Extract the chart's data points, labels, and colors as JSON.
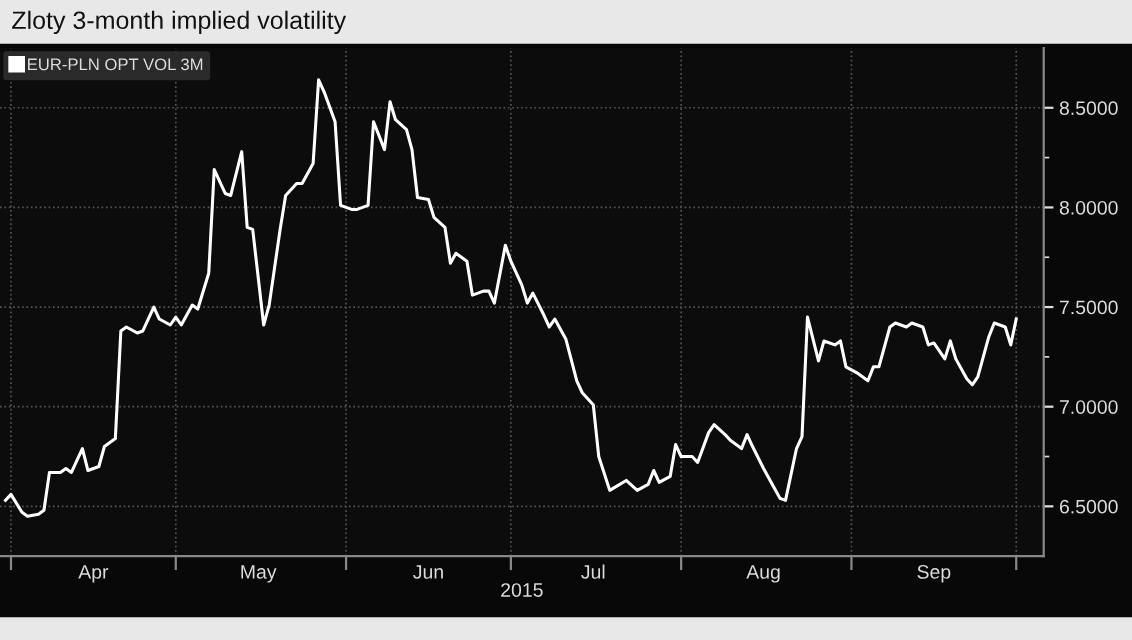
{
  "chart_data": {
    "type": "line",
    "title": "Zloty 3-month implied volatility",
    "xlabel": "2015",
    "x": [
      "2015-03-31",
      "2015-04-01",
      "2015-04-03",
      "2015-04-04",
      "2015-04-06",
      "2015-04-07",
      "2015-04-08",
      "2015-04-10",
      "2015-04-11",
      "2015-04-12",
      "2015-04-14",
      "2015-04-15",
      "2015-04-17",
      "2015-04-18",
      "2015-04-20",
      "2015-04-21",
      "2015-04-22",
      "2015-04-24",
      "2015-04-25",
      "2015-04-27",
      "2015-04-28",
      "2015-04-30",
      "2015-05-01",
      "2015-05-02",
      "2015-05-04",
      "2015-05-05",
      "2015-05-07",
      "2015-05-08",
      "2015-05-10",
      "2015-05-11",
      "2015-05-13",
      "2015-05-14",
      "2015-05-15",
      "2015-05-17",
      "2015-05-18",
      "2015-05-20",
      "2015-05-21",
      "2015-05-23",
      "2015-05-24",
      "2015-05-26",
      "2015-05-27",
      "2015-05-28",
      "2015-05-30",
      "2015-05-31",
      "2015-06-02",
      "2015-06-03",
      "2015-06-05",
      "2015-06-06",
      "2015-06-08",
      "2015-06-09",
      "2015-06-10",
      "2015-06-12",
      "2015-06-13",
      "2015-06-14",
      "2015-06-16",
      "2015-06-17",
      "2015-06-19",
      "2015-06-20",
      "2015-06-21",
      "2015-06-23",
      "2015-06-24",
      "2015-06-26",
      "2015-06-27",
      "2015-06-28",
      "2015-06-30",
      "2015-07-01",
      "2015-07-03",
      "2015-07-04",
      "2015-07-05",
      "2015-07-07",
      "2015-07-08",
      "2015-07-09",
      "2015-07-11",
      "2015-07-13",
      "2015-07-14",
      "2015-07-16",
      "2015-07-17",
      "2015-07-19",
      "2015-07-22",
      "2015-07-24",
      "2015-07-26",
      "2015-07-27",
      "2015-07-28",
      "2015-07-30",
      "2015-07-31",
      "2015-08-01",
      "2015-08-03",
      "2015-08-04",
      "2015-08-06",
      "2015-08-07",
      "2015-08-09",
      "2015-08-10",
      "2015-08-12",
      "2015-08-13",
      "2015-08-14",
      "2015-08-16",
      "2015-08-18",
      "2015-08-19",
      "2015-08-20",
      "2015-08-22",
      "2015-08-23",
      "2015-08-24",
      "2015-08-26",
      "2015-08-27",
      "2015-08-29",
      "2015-08-30",
      "2015-08-31",
      "2015-09-02",
      "2015-09-04",
      "2015-09-05",
      "2015-09-06",
      "2015-09-08",
      "2015-09-09",
      "2015-09-11",
      "2015-09-12",
      "2015-09-14",
      "2015-09-15",
      "2015-09-16",
      "2015-09-18",
      "2015-09-19",
      "2015-09-20",
      "2015-09-22",
      "2015-09-23",
      "2015-09-24",
      "2015-09-26",
      "2015-09-27",
      "2015-09-29",
      "2015-09-30",
      "2015-10-01"
    ],
    "series": [
      {
        "name": "EUR-PLN OPT VOL 3M",
        "color": "#ffffff",
        "values": [
          6.53,
          6.56,
          6.47,
          6.45,
          6.46,
          6.48,
          6.67,
          6.67,
          6.69,
          6.67,
          6.79,
          6.68,
          6.7,
          6.8,
          6.84,
          7.38,
          7.4,
          7.37,
          7.38,
          7.5,
          7.44,
          7.41,
          7.45,
          7.41,
          7.51,
          7.49,
          7.67,
          8.19,
          8.07,
          8.06,
          8.28,
          7.9,
          7.89,
          7.41,
          7.51,
          7.89,
          8.06,
          8.12,
          8.12,
          8.22,
          8.64,
          8.58,
          8.43,
          8.01,
          7.99,
          7.99,
          8.01,
          8.43,
          8.29,
          8.53,
          8.44,
          8.39,
          8.29,
          8.05,
          8.04,
          7.95,
          7.9,
          7.72,
          7.77,
          7.73,
          7.56,
          7.58,
          7.58,
          7.52,
          7.81,
          7.73,
          7.61,
          7.52,
          7.57,
          7.46,
          7.4,
          7.44,
          7.34,
          7.13,
          7.07,
          7.01,
          6.75,
          6.58,
          6.63,
          6.58,
          6.61,
          6.68,
          6.62,
          6.65,
          6.81,
          6.75,
          6.75,
          6.72,
          6.87,
          6.91,
          6.86,
          6.83,
          6.79,
          6.86,
          6.8,
          6.69,
          6.59,
          6.54,
          6.53,
          6.79,
          6.85,
          7.45,
          7.23,
          7.33,
          7.31,
          7.33,
          7.2,
          7.17,
          7.13,
          7.2,
          7.2,
          7.4,
          7.42,
          7.4,
          7.42,
          7.4,
          7.31,
          7.32,
          7.24,
          7.33,
          7.24,
          7.14,
          7.11,
          7.15,
          7.35,
          7.42,
          7.4,
          7.31,
          7.44
        ]
      }
    ],
    "xlim": [
      "2015-03-30",
      "2015-10-06"
    ],
    "xticks": [
      {
        "value": "2015-04-01",
        "label": null
      },
      {
        "value": "2015-04-16",
        "label": "Apr"
      },
      {
        "value": "2015-05-01",
        "label": null
      },
      {
        "value": "2015-05-16",
        "label": "May"
      },
      {
        "value": "2015-06-01",
        "label": null
      },
      {
        "value": "2015-06-16",
        "label": "Jun"
      },
      {
        "value": "2015-07-01",
        "label": null
      },
      {
        "value": "2015-07-16",
        "label": "Jul"
      },
      {
        "value": "2015-08-01",
        "label": null
      },
      {
        "value": "2015-08-16",
        "label": "Aug"
      },
      {
        "value": "2015-09-01",
        "label": null
      },
      {
        "value": "2015-09-16",
        "label": "Sep"
      },
      {
        "value": "2015-10-01",
        "label": null
      }
    ],
    "ylim": [
      6.25,
      8.8
    ],
    "yticks": [
      {
        "value": 6.5,
        "label": "6.5000"
      },
      {
        "value": 6.75,
        "label": null
      },
      {
        "value": 7.0,
        "label": "7.0000"
      },
      {
        "value": 7.25,
        "label": null
      },
      {
        "value": 7.5,
        "label": "7.5000"
      },
      {
        "value": 7.75,
        "label": null
      },
      {
        "value": 8.0,
        "label": "8.0000"
      },
      {
        "value": 8.25,
        "label": null
      },
      {
        "value": 8.5,
        "label": "8.5000"
      }
    ],
    "grid": true,
    "legend": "top left",
    "line_style": "solid",
    "marker": "none"
  }
}
